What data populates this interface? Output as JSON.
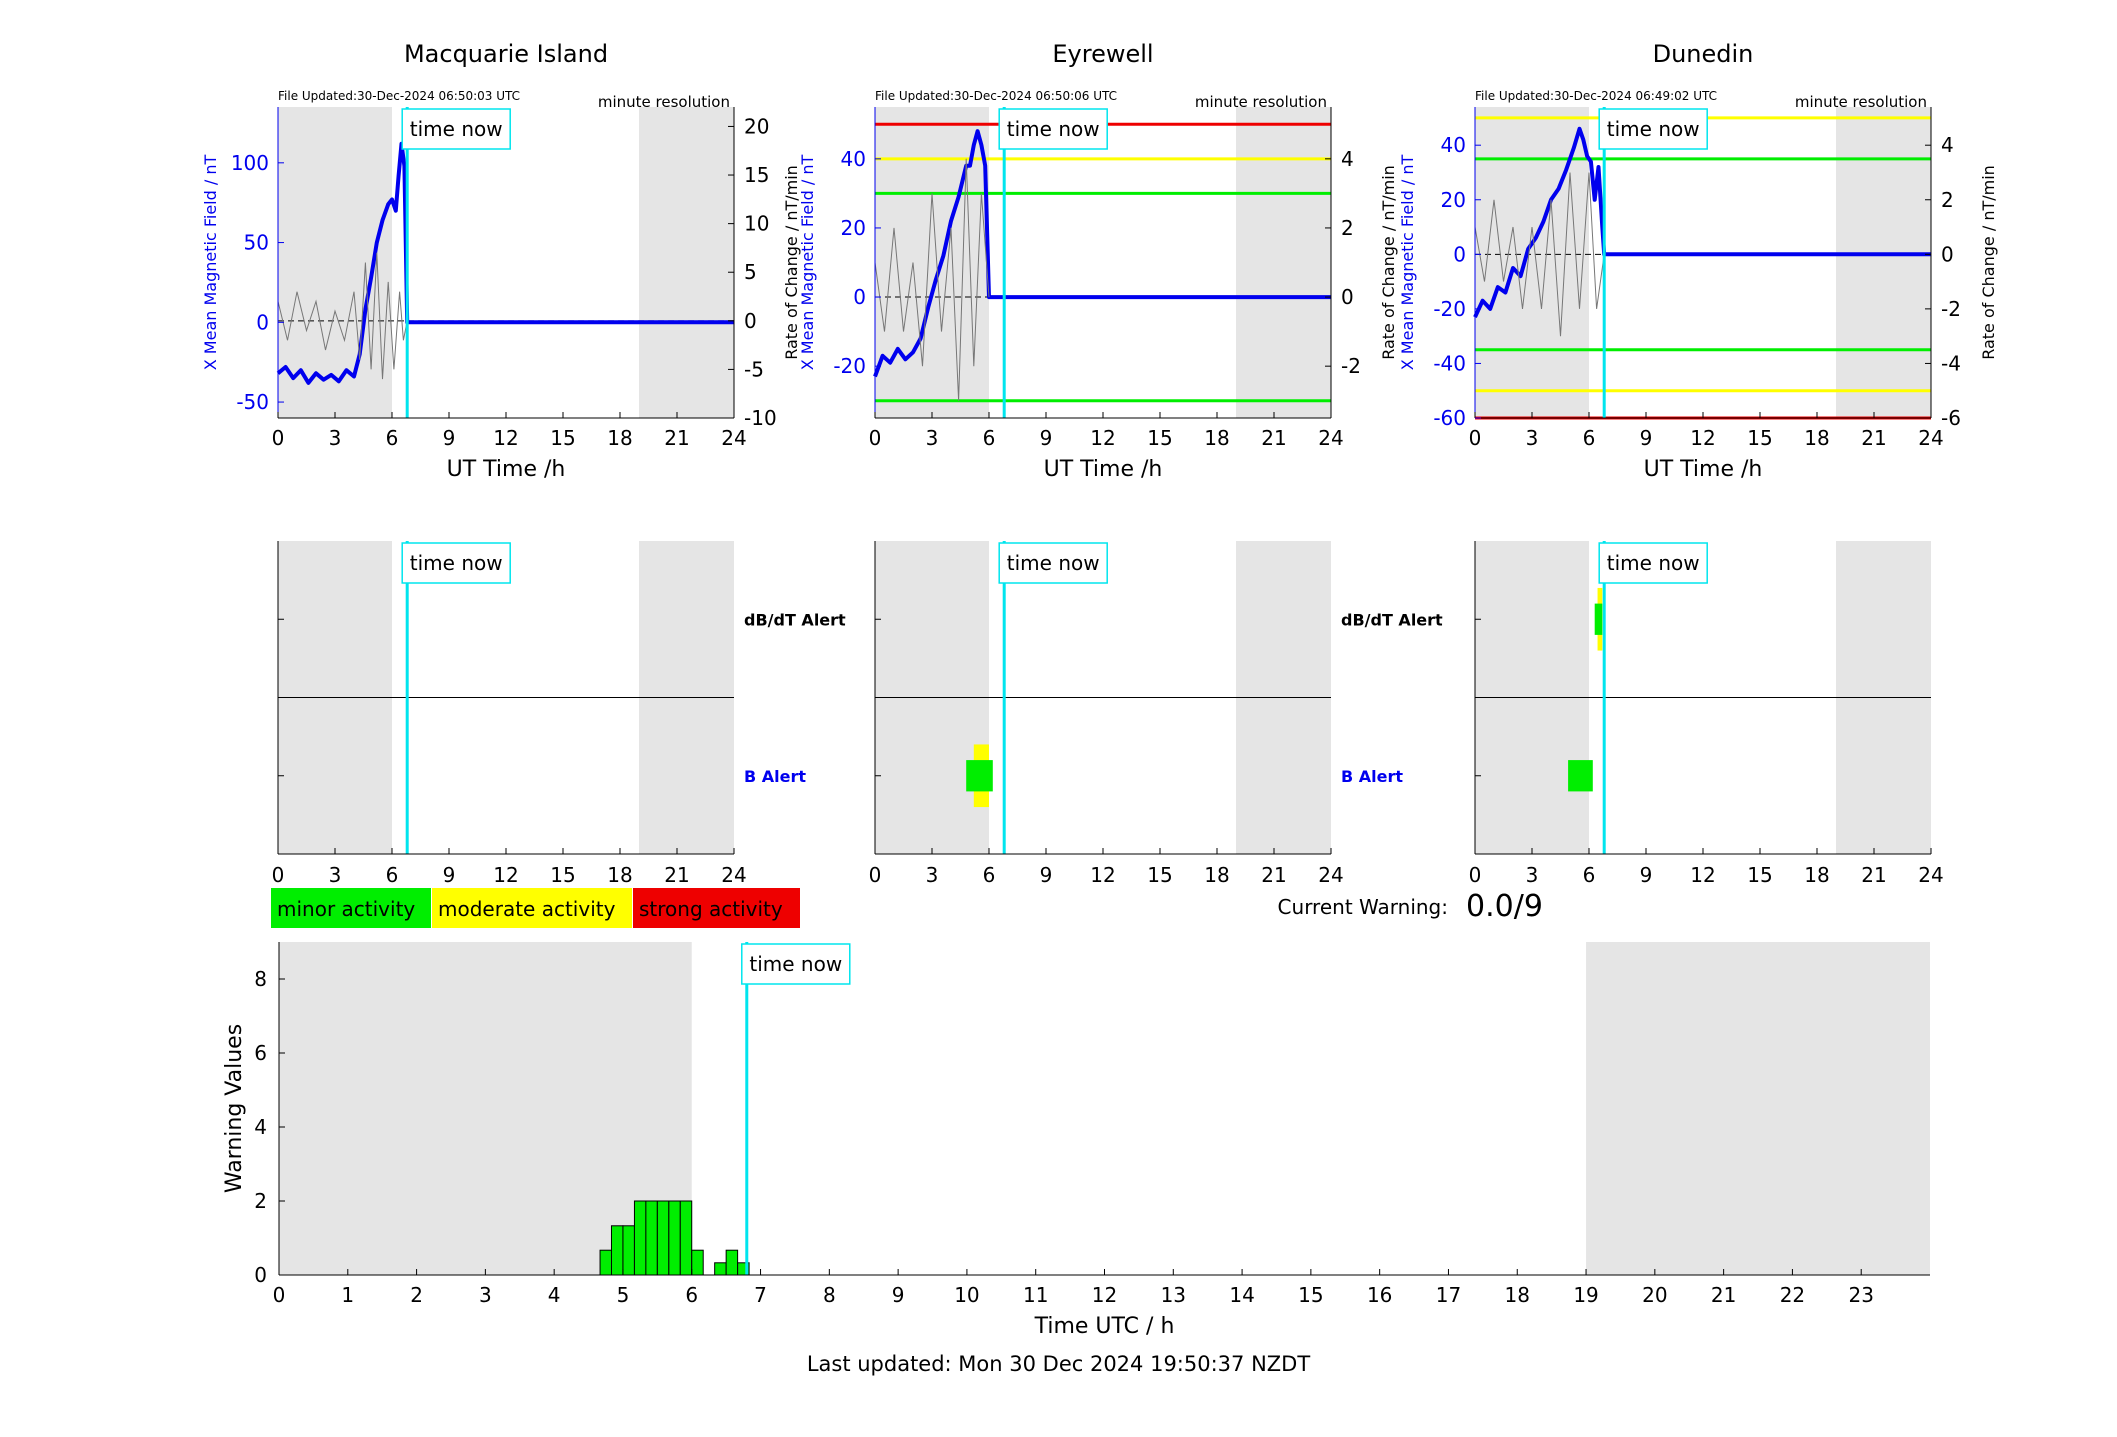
{
  "page": {
    "last_updated": "Last updated: Mon 30 Dec 2024 19:50:37 NZDT",
    "time_now_label": "time now",
    "minute_resolution": "minute resolution",
    "current_warning_label": "Current Warning:",
    "current_warning_value": "0.0/9",
    "colors": {
      "minor": "#00ee00",
      "moderate": "#ffff00",
      "strong": "#ee0000",
      "field_line": "#0000ee",
      "time_now": "#00e5ee",
      "night_shade": "#e5e5e5"
    }
  },
  "legend": {
    "minor": "minor activity",
    "moderate": "moderate activity",
    "strong": "strong activity"
  },
  "chart_data": [
    {
      "type": "line",
      "title": "Macquarie Island",
      "file_updated": "File Updated:30-Dec-2024 06:50:03 UTC",
      "xlabel": "UT Time /h",
      "ylabel_left": "X Mean Magnetic Field / nT",
      "ylabel_right": "Rate of Change / nT/min",
      "xlim": [
        0,
        24
      ],
      "xticks": [
        0,
        3,
        6,
        9,
        12,
        15,
        18,
        21,
        24
      ],
      "ylim_left": [
        -60,
        135
      ],
      "yticks_left": [
        -50,
        0,
        50,
        100
      ],
      "ylim_right": [
        -10,
        22
      ],
      "yticks_right": [
        -10,
        -5,
        0,
        5,
        10,
        15,
        20
      ],
      "night_bands": [
        [
          0,
          6
        ],
        [
          19,
          24
        ]
      ],
      "time_now": 6.8,
      "thresholds": [],
      "series": [
        {
          "axis": "left",
          "style": "thick",
          "x": [
            0,
            0.4,
            0.8,
            1.2,
            1.6,
            2.0,
            2.4,
            2.8,
            3.2,
            3.6,
            4.0,
            4.3,
            4.6,
            4.9,
            5.2,
            5.5,
            5.8,
            6.0,
            6.2,
            6.35,
            6.5,
            6.65,
            6.8,
            7.0,
            24
          ],
          "y": [
            -32,
            -28,
            -35,
            -30,
            -38,
            -32,
            -36,
            -33,
            -37,
            -30,
            -34,
            -20,
            8,
            28,
            50,
            64,
            74,
            77,
            70,
            92,
            112,
            98,
            0,
            0,
            0
          ]
        },
        {
          "axis": "right",
          "style": "thin",
          "x": [
            0,
            0.5,
            1.0,
            1.5,
            2.0,
            2.5,
            3.0,
            3.5,
            4.0,
            4.3,
            4.6,
            4.9,
            5.2,
            5.5,
            5.8,
            6.1,
            6.4,
            6.6,
            6.8
          ],
          "y": [
            2,
            -2,
            3,
            -1,
            2,
            -3,
            1,
            -2,
            3,
            -4,
            6,
            -5,
            7,
            -6,
            4,
            -5,
            3,
            -2,
            0
          ]
        }
      ]
    },
    {
      "type": "line",
      "title": "Eyrewell",
      "file_updated": "File Updated:30-Dec-2024 06:50:06 UTC",
      "xlabel": "UT Time /h",
      "ylabel_left": "X Mean Magnetic Field / nT",
      "ylabel_right": "Rate of Change / nT/min",
      "xlim": [
        0,
        24
      ],
      "xticks": [
        0,
        3,
        6,
        9,
        12,
        15,
        18,
        21,
        24
      ],
      "ylim_left": [
        -35,
        55
      ],
      "yticks_left": [
        -20,
        0,
        20,
        40
      ],
      "ylim_right": [
        -3.5,
        5.5
      ],
      "yticks_right": [
        -2,
        0,
        2,
        4
      ],
      "night_bands": [
        [
          0,
          6
        ],
        [
          19,
          24
        ]
      ],
      "time_now": 6.8,
      "thresholds": [
        {
          "axis": "left",
          "value": 50,
          "level": "strong"
        },
        {
          "axis": "left",
          "value": 40,
          "level": "moderate"
        },
        {
          "axis": "left",
          "value": 30,
          "level": "minor"
        },
        {
          "axis": "left",
          "value": -30,
          "level": "minor"
        }
      ],
      "series": [
        {
          "axis": "left",
          "style": "thick",
          "x": [
            0,
            0.4,
            0.8,
            1.2,
            1.6,
            2.0,
            2.4,
            2.8,
            3.2,
            3.6,
            4.0,
            4.4,
            4.8,
            5.0,
            5.2,
            5.4,
            5.6,
            5.8,
            6.0,
            24
          ],
          "y": [
            -23,
            -17,
            -19,
            -15,
            -18,
            -16,
            -12,
            -3,
            5,
            12,
            22,
            29,
            38,
            38,
            44,
            48,
            44,
            38,
            0,
            0
          ]
        },
        {
          "axis": "right",
          "style": "thin",
          "x": [
            0,
            0.5,
            1.0,
            1.5,
            2.0,
            2.5,
            3.0,
            3.5,
            4.0,
            4.4,
            4.8,
            5.2,
            5.6,
            6.0
          ],
          "y": [
            1,
            -1,
            2,
            -1,
            1,
            -2,
            3,
            -1,
            2,
            -3,
            4,
            -2,
            3,
            0
          ]
        }
      ]
    },
    {
      "type": "line",
      "title": "Dunedin",
      "file_updated": "File Updated:30-Dec-2024 06:49:02 UTC",
      "xlabel": "UT Time /h",
      "ylabel_left": "X Mean Magnetic Field / nT",
      "ylabel_right": "Rate of Change / nT/min",
      "xlim": [
        0,
        24
      ],
      "xticks": [
        0,
        3,
        6,
        9,
        12,
        15,
        18,
        21,
        24
      ],
      "ylim_left": [
        -60,
        54
      ],
      "yticks_left": [
        -60,
        -40,
        -20,
        0,
        20,
        40
      ],
      "ylim_right": [
        -6,
        5.4
      ],
      "yticks_right": [
        -6,
        -4,
        -2,
        0,
        2,
        4
      ],
      "night_bands": [
        [
          0,
          6
        ],
        [
          19,
          24
        ]
      ],
      "time_now": 6.8,
      "thresholds": [
        {
          "axis": "left",
          "value": 50,
          "level": "moderate"
        },
        {
          "axis": "left",
          "value": 35,
          "level": "minor"
        },
        {
          "axis": "left",
          "value": -35,
          "level": "minor"
        },
        {
          "axis": "left",
          "value": -50,
          "level": "moderate"
        },
        {
          "axis": "left",
          "value": -60,
          "level": "strong"
        }
      ],
      "series": [
        {
          "axis": "left",
          "style": "thick",
          "x": [
            0,
            0.4,
            0.8,
            1.2,
            1.6,
            2.0,
            2.4,
            2.8,
            3.2,
            3.6,
            4.0,
            4.4,
            4.8,
            5.2,
            5.5,
            5.7,
            5.9,
            6.1,
            6.3,
            6.5,
            6.7,
            6.8,
            24
          ],
          "y": [
            -23,
            -17,
            -20,
            -12,
            -14,
            -5,
            -8,
            2,
            6,
            12,
            20,
            24,
            31,
            39,
            46,
            42,
            36,
            34,
            20,
            32,
            10,
            0,
            0
          ]
        },
        {
          "axis": "right",
          "style": "thin",
          "x": [
            0,
            0.5,
            1.0,
            1.5,
            2.0,
            2.5,
            3.0,
            3.5,
            4.0,
            4.5,
            5.0,
            5.5,
            6.0,
            6.4,
            6.8
          ],
          "y": [
            1,
            -1,
            2,
            -1,
            1,
            -2,
            1,
            -2,
            2,
            -3,
            3,
            -2,
            3,
            -2,
            0
          ]
        }
      ]
    },
    {
      "type": "heatmap",
      "title": "",
      "row_labels": [
        "dB/dT Alert",
        "B Alert"
      ],
      "xlim": [
        0,
        24
      ],
      "xticks": [
        0,
        3,
        6,
        9,
        12,
        15,
        18,
        21,
        24
      ],
      "night_bands": [
        [
          0,
          6
        ],
        [
          19,
          24
        ]
      ],
      "time_now": 6.8,
      "cells": []
    },
    {
      "type": "heatmap",
      "title": "",
      "row_labels": [
        "dB/dT Alert",
        "B Alert"
      ],
      "xlim": [
        0,
        24
      ],
      "xticks": [
        0,
        3,
        6,
        9,
        12,
        15,
        18,
        21,
        24
      ],
      "night_bands": [
        [
          0,
          6
        ],
        [
          19,
          24
        ]
      ],
      "time_now": 6.8,
      "cells": [
        {
          "row": 1,
          "x0": 5.2,
          "x1": 6.0,
          "y_frac": 0.4,
          "level": "moderate"
        },
        {
          "row": 1,
          "x0": 4.8,
          "x1": 6.2,
          "y_frac": 0.2,
          "level": "minor"
        }
      ]
    },
    {
      "type": "heatmap",
      "title": "",
      "row_labels": [
        "dB/dT Alert",
        "B Alert"
      ],
      "xlim": [
        0,
        24
      ],
      "xticks": [
        0,
        3,
        6,
        9,
        12,
        15,
        18,
        21,
        24
      ],
      "night_bands": [
        [
          0,
          6
        ],
        [
          19,
          24
        ]
      ],
      "time_now": 6.8,
      "cells": [
        {
          "row": 0,
          "x0": 6.45,
          "x1": 6.7,
          "y_frac": 0.4,
          "level": "moderate"
        },
        {
          "row": 0,
          "x0": 6.3,
          "x1": 6.7,
          "y_frac": 0.2,
          "level": "minor"
        },
        {
          "row": 1,
          "x0": 4.9,
          "x1": 6.2,
          "y_frac": 0.2,
          "level": "minor"
        }
      ]
    },
    {
      "type": "bar",
      "title": "",
      "xlabel": "Time UTC / h",
      "ylabel": "Warning Values",
      "xlim": [
        0,
        24
      ],
      "xticks": [
        0,
        1,
        2,
        3,
        4,
        5,
        6,
        7,
        8,
        9,
        10,
        11,
        12,
        13,
        14,
        15,
        16,
        17,
        18,
        19,
        20,
        21,
        22,
        23
      ],
      "ylim": [
        0,
        9
      ],
      "yticks": [
        0,
        2,
        4,
        6,
        8
      ],
      "night_bands": [
        [
          0,
          6
        ],
        [
          19,
          24
        ]
      ],
      "time_now": 6.8,
      "bar_width": 0.1667,
      "bars": [
        {
          "x": 4.667,
          "value": 0.67
        },
        {
          "x": 4.833,
          "value": 1.33
        },
        {
          "x": 5.0,
          "value": 1.33
        },
        {
          "x": 5.167,
          "value": 2
        },
        {
          "x": 5.333,
          "value": 2
        },
        {
          "x": 5.5,
          "value": 2
        },
        {
          "x": 5.667,
          "value": 2
        },
        {
          "x": 5.833,
          "value": 2
        },
        {
          "x": 6.0,
          "value": 0.67
        },
        {
          "x": 6.333,
          "value": 0.33
        },
        {
          "x": 6.5,
          "value": 0.67
        },
        {
          "x": 6.667,
          "value": 0.33
        }
      ]
    }
  ]
}
